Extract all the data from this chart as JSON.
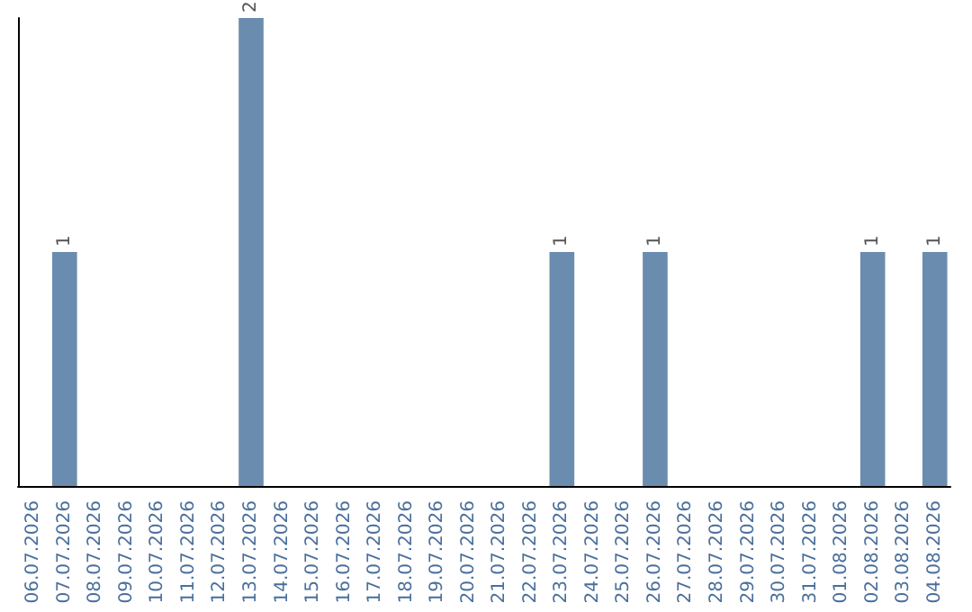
{
  "chart_data": {
    "type": "bar",
    "categories": [
      "06.07.2026",
      "07.07.2026",
      "08.07.2026",
      "09.07.2026",
      "10.07.2026",
      "11.07.2026",
      "12.07.2026",
      "13.07.2026",
      "14.07.2026",
      "15.07.2026",
      "16.07.2026",
      "17.07.2026",
      "18.07.2026",
      "19.07.2026",
      "20.07.2026",
      "21.07.2026",
      "22.07.2026",
      "23.07.2026",
      "24.07.2026",
      "25.07.2026",
      "26.07.2026",
      "27.07.2026",
      "28.07.2026",
      "29.07.2026",
      "30.07.2026",
      "31.07.2026",
      "01.08.2026",
      "02.08.2026",
      "03.08.2026",
      "04.08.2026"
    ],
    "values": [
      0,
      1,
      0,
      0,
      0,
      0,
      0,
      2,
      0,
      0,
      0,
      0,
      0,
      0,
      0,
      0,
      0,
      1,
      0,
      0,
      1,
      0,
      0,
      0,
      0,
      0,
      0,
      1,
      0,
      1
    ],
    "value_labels": [
      null,
      "1",
      null,
      null,
      null,
      null,
      null,
      "2",
      null,
      null,
      null,
      null,
      null,
      null,
      null,
      null,
      null,
      "1",
      null,
      null,
      "1",
      null,
      null,
      null,
      null,
      null,
      null,
      "1",
      null,
      "1"
    ],
    "color": "#6a8caf",
    "ylim": [
      0,
      2
    ],
    "tick_labels": "x",
    "grid": false
  }
}
